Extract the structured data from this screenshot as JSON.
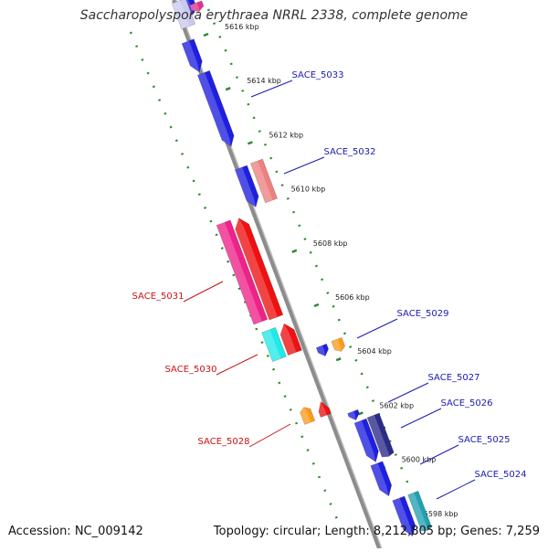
{
  "title": "Saccharopolyspora erythraea NRRL 2338, complete genome",
  "footer": {
    "accession": "Accession: NC_009142",
    "summary": "Topology: circular; Length: 8,212,805 bp; Genes: 7,259"
  },
  "ticks": [
    {
      "label": "5616 kbp",
      "kbp": 5616
    },
    {
      "label": "5614 kbp",
      "kbp": 5614
    },
    {
      "label": "5612 kbp",
      "kbp": 5612
    },
    {
      "label": "5610 kbp",
      "kbp": 5610
    },
    {
      "label": "5608 kbp",
      "kbp": 5608
    },
    {
      "label": "5606 kbp",
      "kbp": 5606
    },
    {
      "label": "5604 kbp",
      "kbp": 5604
    },
    {
      "label": "5602 kbp",
      "kbp": 5602
    },
    {
      "label": "5600 kbp",
      "kbp": 5600
    },
    {
      "label": "5598 kbp",
      "kbp": 5598
    }
  ],
  "gene_labels": [
    {
      "text": "SACE_5033",
      "strand": "forward",
      "color": "#1a1ab4"
    },
    {
      "text": "SACE_5032",
      "strand": "forward",
      "color": "#1a1ab4"
    },
    {
      "text": "SACE_5031",
      "strand": "reverse",
      "color": "#cc1111"
    },
    {
      "text": "SACE_5029",
      "strand": "forward",
      "color": "#1a1ab4"
    },
    {
      "text": "SACE_5030",
      "strand": "reverse",
      "color": "#cc1111"
    },
    {
      "text": "SACE_5027",
      "strand": "forward",
      "color": "#1a1ab4"
    },
    {
      "text": "SACE_5026",
      "strand": "forward",
      "color": "#1a1ab4"
    },
    {
      "text": "SACE_5028",
      "strand": "reverse",
      "color": "#cc1111"
    },
    {
      "text": "SACE_5025",
      "strand": "forward",
      "color": "#1a1ab4"
    },
    {
      "text": "SACE_5024",
      "strand": "forward",
      "color": "#1a1ab4"
    }
  ],
  "colors": {
    "backbone": "#8c8c8c",
    "guide_dots": "#2e8b2e",
    "tick_text": "#222222",
    "blue": "#1f1fe0",
    "red": "#ee1111",
    "pink": "#ee2288",
    "salmon": "#ee8080",
    "cyan": "#22e8e8",
    "orange": "#ff9a1a",
    "navy": "#2a2a88",
    "purple": "#7070cc",
    "lavender": "#c8c8f0"
  }
}
